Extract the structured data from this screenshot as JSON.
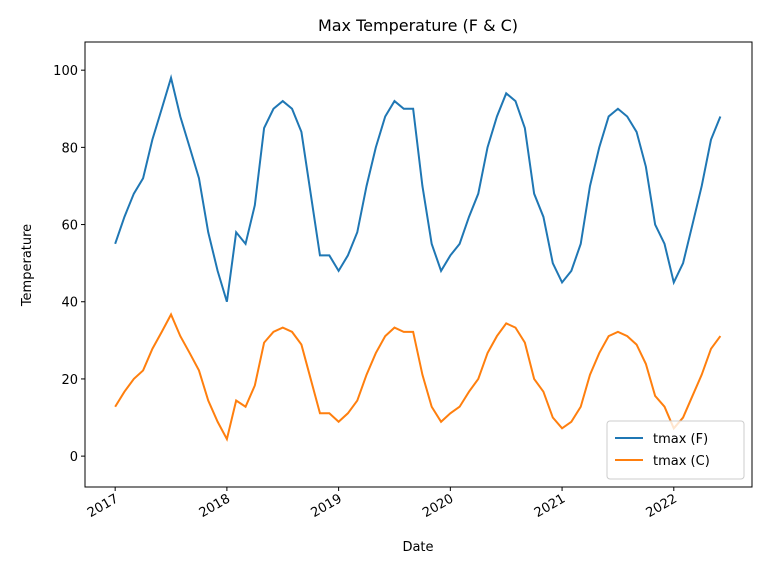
{
  "chart_data": {
    "type": "line",
    "title": "Max Temperature (F & C)",
    "xlabel": "Date",
    "ylabel": "Temperature",
    "x": [
      2017,
      2017.083,
      2017.167,
      2017.25,
      2017.333,
      2017.417,
      2017.5,
      2017.583,
      2017.667,
      2017.75,
      2017.833,
      2017.917,
      2018,
      2018.083,
      2018.167,
      2018.25,
      2018.333,
      2018.417,
      2018.5,
      2018.583,
      2018.667,
      2018.75,
      2018.833,
      2018.917,
      2019,
      2019.083,
      2019.167,
      2019.25,
      2019.333,
      2019.417,
      2019.5,
      2019.583,
      2019.667,
      2019.75,
      2019.833,
      2019.917,
      2020,
      2020.083,
      2020.167,
      2020.25,
      2020.333,
      2020.417,
      2020.5,
      2020.583,
      2020.667,
      2020.75,
      2020.833,
      2020.917,
      2021,
      2021.083,
      2021.167,
      2021.25,
      2021.333,
      2021.417,
      2021.5,
      2021.583,
      2021.667,
      2021.75,
      2021.833,
      2021.917,
      2022,
      2022.083,
      2022.167,
      2022.25,
      2022.333,
      2022.417
    ],
    "series": [
      {
        "name": "tmax (F)",
        "color": "#1f77b4",
        "values": [
          55,
          62,
          68,
          72,
          82,
          90,
          98,
          88,
          80,
          72,
          58,
          48,
          40,
          58,
          55,
          65,
          85,
          90,
          92,
          90,
          84,
          68,
          52,
          52,
          48,
          52,
          58,
          70,
          80,
          88,
          92,
          90,
          90,
          70,
          55,
          48,
          52,
          55,
          62,
          68,
          80,
          88,
          94,
          92,
          85,
          68,
          62,
          50,
          45,
          48,
          55,
          70,
          80,
          88,
          90,
          88,
          84,
          75,
          60,
          55,
          45,
          50,
          60,
          70,
          82,
          88
        ]
      },
      {
        "name": "tmax (C)",
        "color": "#ff7f0e",
        "values": [
          12.8,
          16.7,
          20,
          22.2,
          27.8,
          32.2,
          36.7,
          31.1,
          26.7,
          22.2,
          14.4,
          8.9,
          4.4,
          14.4,
          12.8,
          18.3,
          29.4,
          32.2,
          33.3,
          32.2,
          28.9,
          20,
          11.1,
          11.1,
          8.9,
          11.1,
          14.4,
          21.1,
          26.7,
          31.1,
          33.3,
          32.2,
          32.2,
          21.1,
          12.8,
          8.9,
          11.1,
          12.8,
          16.7,
          20,
          26.7,
          31.1,
          34.4,
          33.3,
          29.4,
          20,
          16.7,
          10,
          7.2,
          8.9,
          12.8,
          21.1,
          26.7,
          31.1,
          32.2,
          31.1,
          28.9,
          23.9,
          15.6,
          12.8,
          7.2,
          10,
          15.6,
          21.1,
          27.8,
          31.1
        ]
      }
    ],
    "xlim": [
      2016.73,
      2022.7
    ],
    "xticks": [
      2017,
      2018,
      2019,
      2020,
      2021,
      2022
    ],
    "ylim": [
      -8,
      107.3
    ],
    "yticks": [
      0,
      20,
      40,
      60,
      80,
      100
    ],
    "legend": "lower right"
  }
}
